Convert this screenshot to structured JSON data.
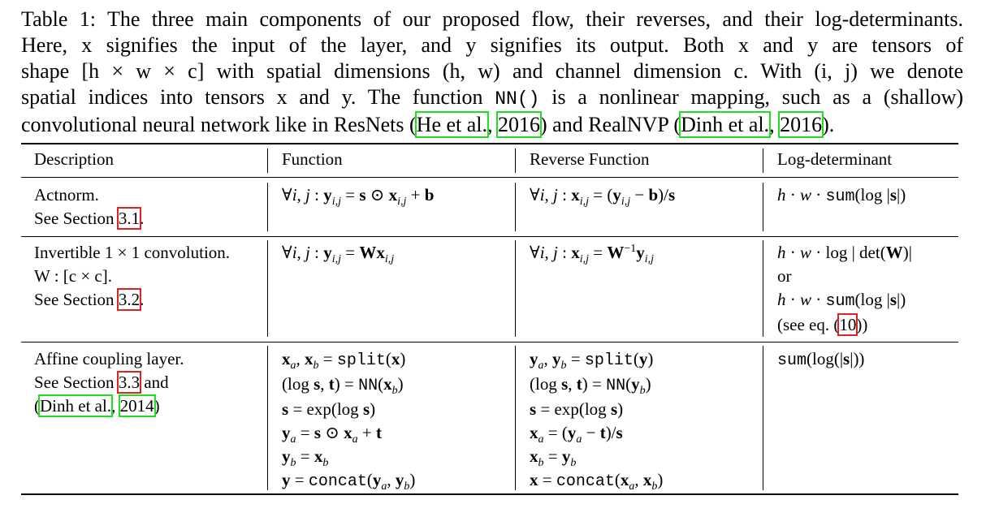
{
  "caption": {
    "label": "Table 1:",
    "line1_rest": "The three main components of our proposed flow, their reverses, and their log-determinants.",
    "line2": "Here, x signifies the input of the layer, and y signifies its output. Both x and y are tensors of",
    "line3": "shape [h × w × c] with spatial dimensions (h, w) and channel dimension c. With (i, j) we denote",
    "line4_a": "spatial indices into tensors x and y. The function",
    "line4_nn": "NN()",
    "line4_b": "is a nonlinear mapping, such as a (shallow)",
    "line5_a": "convolutional neural network like in ResNets (",
    "cite_he": "He et al.",
    "cite_he_year": "2016",
    "line5_b": ") and RealNVP (",
    "cite_dinh": "Dinh et al.",
    "cite_dinh_year": "2016",
    "line5_c": ")."
  },
  "table": {
    "headers": [
      "Description",
      "Function",
      "Reverse Function",
      "Log-determinant"
    ],
    "rows": [
      {
        "desc": [
          "Actnorm.",
          "See Section",
          "3.1",
          "."
        ],
        "func": [
          "∀i, j : y_{i,j} = s ⊙ x_{i,j} + b"
        ],
        "rev": [
          "∀i, j : x_{i,j} = (y_{i,j} − b)/s"
        ],
        "logdet": [
          "h · w · sum(log |s|)"
        ]
      },
      {
        "desc": [
          "Invertible 1 × 1 convolution.",
          "W : [c × c].",
          "See Section",
          "3.2",
          "."
        ],
        "func": [
          "∀i, j : y_{i,j} = Wx_{i,j}"
        ],
        "rev": [
          "∀i, j : x_{i,j} = W^{−1}y_{i,j}"
        ],
        "logdet": [
          "h · w · log | det(W)|",
          "or",
          "h · w · sum(log |s|)",
          "(see eq. (",
          "10",
          "))"
        ]
      },
      {
        "desc": [
          "Affine coupling layer.",
          "See Section",
          "3.3",
          "and",
          "(",
          "Dinh et al.",
          ",",
          "2014",
          ")"
        ],
        "func": [
          "x_a, x_b = split(x)",
          "(log s, t) = NN(x_b)",
          "s = exp(log s)",
          "y_a = s ⊙ x_a + t",
          "y_b = x_b",
          "y = concat(y_a, y_b)"
        ],
        "rev": [
          "y_a, y_b = split(y)",
          "(log s, t) = NN(y_b)",
          "s = exp(log s)",
          "x_a = (y_a − t)/s",
          "x_b = y_b",
          "x = concat(x_a, x_b)"
        ],
        "logdet": [
          "sum(log(|s|))"
        ]
      }
    ]
  },
  "colors": {
    "citation_box": "#22dd22",
    "ref_box": "#dd2222"
  }
}
